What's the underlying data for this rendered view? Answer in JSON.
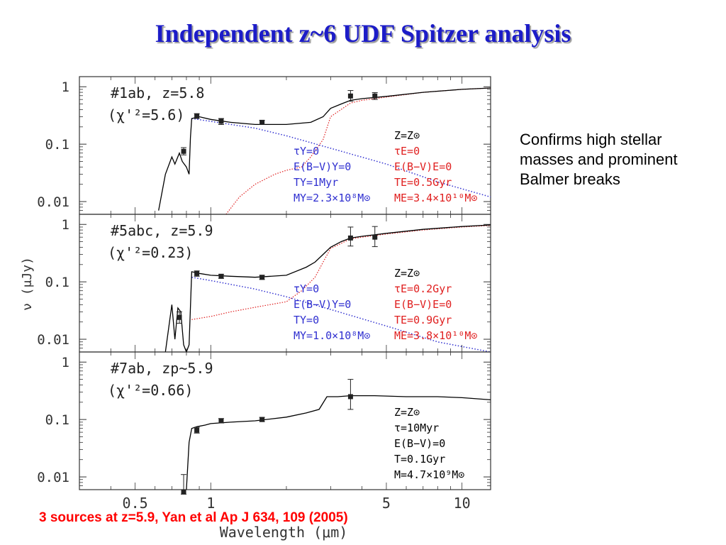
{
  "slide": {
    "title": "Independent z~6 UDF Spitzer analysis",
    "side_note": "Confirms high stellar masses and prominent Balmer breaks",
    "citation": "3 sources at z=5.9, Yan et al Ap J 634, 109 (2005)"
  },
  "colors": {
    "title": "#1c1cc8",
    "young_component": "#3030d0",
    "old_component": "#e02020",
    "total_model": "#000000",
    "citation": "#ff0000"
  },
  "chart_data": {
    "type": "line",
    "xlabel": "Wavelength (μm)",
    "ylabel_fragment": "ν (μJy)",
    "x_scale": "log",
    "y_scale": "log",
    "xlim": [
      0.3,
      13
    ],
    "ylim": [
      0.006,
      1.5
    ],
    "x_ticks": [
      0.5,
      1,
      5,
      10
    ],
    "x_tick_labels": [
      "0.5",
      "1",
      "5",
      "10"
    ],
    "y_ticks": [
      0.01,
      0.1,
      1
    ],
    "y_tick_labels": [
      "0.01",
      "0.1",
      "1"
    ],
    "panels": [
      {
        "id": "p1",
        "label": "#1ab, z=5.8",
        "chi_label": "(χ'²=5.6)",
        "ann_lines": [
          {
            "text": "Z=Z⊙",
            "color": "black"
          },
          {
            "text": "τY=0",
            "color": "blue",
            "col": 0
          },
          {
            "text": "E(B−V)Y=0",
            "color": "blue",
            "col": 0
          },
          {
            "text": "TY=1Myr",
            "color": "blue",
            "col": 0
          },
          {
            "text": "MY=2.3×10⁸M⊙",
            "color": "blue",
            "col": 0
          },
          {
            "text": "τE=0",
            "color": "red",
            "col": 1
          },
          {
            "text": "E(B−V)E=0",
            "color": "red",
            "col": 1
          },
          {
            "text": "TE=0.5Gyr",
            "color": "red",
            "col": 1
          },
          {
            "text": "ME=3.4×10¹⁰M⊙",
            "color": "red",
            "col": 1
          }
        ],
        "points": [
          {
            "x": 0.78,
            "y": 0.075,
            "err": [
              0.065,
              0.087
            ]
          },
          {
            "x": 0.88,
            "y": 0.31,
            "err": [
              0.28,
              0.34
            ]
          },
          {
            "x": 1.1,
            "y": 0.25,
            "err": [
              0.22,
              0.28
            ]
          },
          {
            "x": 1.6,
            "y": 0.24,
            "err": [
              0.22,
              0.26
            ]
          },
          {
            "x": 3.6,
            "y": 0.69,
            "err": [
              0.56,
              0.86
            ]
          },
          {
            "x": 4.5,
            "y": 0.69,
            "err": [
              0.6,
              0.79
            ]
          }
        ],
        "total": {
          "x": [
            0.62,
            0.66,
            0.7,
            0.72,
            0.75,
            0.77,
            0.8,
            0.82,
            0.83,
            0.84,
            0.9,
            1.0,
            1.2,
            1.5,
            2.0,
            2.5,
            2.8,
            3.0,
            3.3,
            3.6,
            4.0,
            5.0,
            7.0,
            10.0,
            13.0
          ],
          "y": [
            0.007,
            0.03,
            0.06,
            0.045,
            0.07,
            0.05,
            0.04,
            0.03,
            0.13,
            0.28,
            0.3,
            0.27,
            0.24,
            0.22,
            0.22,
            0.24,
            0.3,
            0.42,
            0.5,
            0.58,
            0.62,
            0.68,
            0.8,
            0.9,
            0.95
          ]
        },
        "young": {
          "x": [
            0.84,
            1.0,
            1.5,
            2.0,
            3.0,
            5.0,
            8.0,
            13.0
          ],
          "y": [
            0.28,
            0.25,
            0.19,
            0.14,
            0.085,
            0.045,
            0.022,
            0.012
          ]
        },
        "old": {
          "x": [
            1.15,
            1.3,
            1.5,
            1.8,
            2.0,
            2.3,
            2.5,
            2.8,
            3.0,
            3.6,
            4.0,
            5.0,
            7.0,
            10.0,
            13.0
          ],
          "y": [
            0.006,
            0.012,
            0.02,
            0.03,
            0.035,
            0.04,
            0.06,
            0.12,
            0.3,
            0.52,
            0.58,
            0.66,
            0.8,
            0.9,
            0.95
          ]
        }
      },
      {
        "id": "p2",
        "label": "#5abc, z=5.9",
        "chi_label": "(χ'²=0.23)",
        "ann_lines": [
          {
            "text": "Z=Z⊙",
            "color": "black"
          },
          {
            "text": "τY=0",
            "color": "blue",
            "col": 0
          },
          {
            "text": "E(B−V)Y=0",
            "color": "blue",
            "col": 0
          },
          {
            "text": "TY=0",
            "color": "blue",
            "col": 0
          },
          {
            "text": "MY=1.0×10⁸M⊙",
            "color": "blue",
            "col": 0
          },
          {
            "text": "τE=0.2Gyr",
            "color": "red",
            "col": 1
          },
          {
            "text": "E(B−V)E=0",
            "color": "red",
            "col": 1
          },
          {
            "text": "TE=0.9Gyr",
            "color": "red",
            "col": 1
          },
          {
            "text": "ME=3.8×10¹⁰M⊙",
            "color": "red",
            "col": 1
          }
        ],
        "points": [
          {
            "x": 0.75,
            "y": 0.024,
            "err": [
              0.019,
              0.03
            ]
          },
          {
            "x": 0.88,
            "y": 0.14,
            "err": [
              0.125,
              0.155
            ]
          },
          {
            "x": 1.1,
            "y": 0.125,
            "err": [
              0.115,
              0.135
            ]
          },
          {
            "x": 1.6,
            "y": 0.12,
            "err": [
              0.11,
              0.13
            ]
          },
          {
            "x": 3.6,
            "y": 0.58,
            "err": [
              0.42,
              0.9
            ]
          },
          {
            "x": 4.5,
            "y": 0.6,
            "err": [
              0.41,
              0.92
            ]
          }
        ],
        "total": {
          "x": [
            0.66,
            0.7,
            0.72,
            0.74,
            0.76,
            0.78,
            0.8,
            0.82,
            0.84,
            0.9,
            1.0,
            1.2,
            1.5,
            2.0,
            2.4,
            2.6,
            2.8,
            3.0,
            3.3,
            3.6,
            4.0,
            5.0,
            7.0,
            10.0,
            13.0
          ],
          "y": [
            0.006,
            0.04,
            0.01,
            0.035,
            0.03,
            0.008,
            0.006,
            0.008,
            0.15,
            0.14,
            0.13,
            0.125,
            0.12,
            0.13,
            0.18,
            0.22,
            0.3,
            0.4,
            0.5,
            0.58,
            0.62,
            0.7,
            0.82,
            0.92,
            0.98
          ]
        },
        "young": {
          "x": [
            0.84,
            1.0,
            1.5,
            2.0,
            3.0,
            5.0,
            8.0,
            13.0
          ],
          "y": [
            0.12,
            0.105,
            0.075,
            0.055,
            0.033,
            0.017,
            0.009,
            0.006
          ]
        },
        "old": {
          "x": [
            0.84,
            1.0,
            1.2,
            1.5,
            2.0,
            2.3,
            2.6,
            2.8,
            3.0,
            3.6,
            4.0,
            5.0,
            7.0,
            10.0,
            13.0
          ],
          "y": [
            0.022,
            0.025,
            0.03,
            0.036,
            0.045,
            0.07,
            0.12,
            0.22,
            0.38,
            0.56,
            0.6,
            0.68,
            0.8,
            0.9,
            0.96
          ]
        }
      },
      {
        "id": "p3",
        "label": "#7ab, zp~5.9",
        "chi_label": "(χ'²=0.66)",
        "ann_lines": [
          {
            "text": "Z=Z⊙",
            "color": "black"
          },
          {
            "text": "τ=10Myr",
            "color": "black"
          },
          {
            "text": "E(B−V)=0",
            "color": "black"
          },
          {
            "text": "T=0.1Gyr",
            "color": "black"
          },
          {
            "text": "M=4.7×10⁹M⊙",
            "color": "black"
          }
        ],
        "points": [
          {
            "x": 0.78,
            "y": 0.0055,
            "err": [
              0.005,
              0.011
            ]
          },
          {
            "x": 0.88,
            "y": 0.065,
            "err": [
              0.058,
              0.073
            ]
          },
          {
            "x": 1.1,
            "y": 0.095,
            "err": [
              0.087,
              0.104
            ]
          },
          {
            "x": 1.6,
            "y": 0.1,
            "err": [
              0.092,
              0.109
            ]
          },
          {
            "x": 3.6,
            "y": 0.25,
            "err": [
              0.15,
              0.5
            ]
          }
        ],
        "total": {
          "x": [
            0.8,
            0.82,
            0.84,
            0.88,
            0.95,
            1.0,
            1.2,
            1.5,
            2.0,
            2.4,
            2.7,
            2.9,
            3.2,
            3.6,
            4.5,
            6.0,
            8.0,
            10.0,
            13.0
          ],
          "y": [
            0.006,
            0.04,
            0.07,
            0.075,
            0.08,
            0.085,
            0.09,
            0.095,
            0.11,
            0.13,
            0.15,
            0.25,
            0.25,
            0.26,
            0.26,
            0.25,
            0.25,
            0.24,
            0.22
          ]
        }
      }
    ]
  }
}
